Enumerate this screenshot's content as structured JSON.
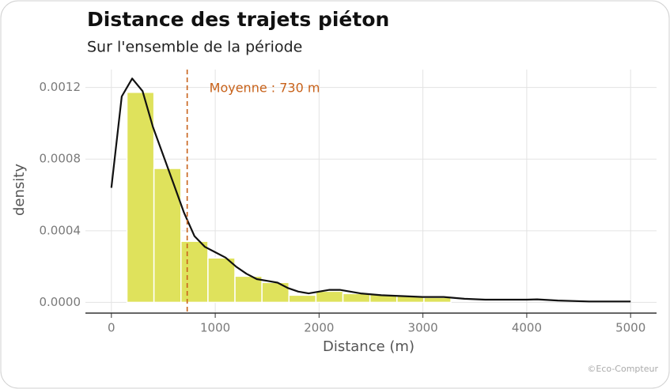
{
  "chart_data": {
    "type": "histogram",
    "title": "Distance des trajets piéton",
    "subtitle": "Sur l'ensemble de la période",
    "x_label": "Distance (m)",
    "y_label": "density",
    "credit": "©Eco-Compteur",
    "bins": [
      150,
      410,
      670,
      930,
      1190,
      1450,
      1710,
      1970,
      2230,
      2490,
      2750,
      3010,
      3270
    ],
    "values": [
      0.001173,
      0.000748,
      0.000341,
      0.000248,
      0.000146,
      0.000111,
      4e-05,
      6.2e-05,
      4.9e-05,
      4.4e-05,
      3.5e-05,
      2.7e-05
    ],
    "color": "#dfe25c",
    "density_curve": {
      "color": "#111111",
      "x": [
        0,
        100,
        200,
        300,
        400,
        500,
        600,
        700,
        800,
        900,
        1000,
        1100,
        1200,
        1300,
        1400,
        1500,
        1600,
        1700,
        1800,
        1900,
        2000,
        2100,
        2200,
        2400,
        2600,
        2800,
        3000,
        3200,
        3400,
        3600,
        3800,
        4000,
        4100,
        4300,
        4600,
        5000
      ],
      "y": [
        0.00064,
        0.00115,
        0.00125,
        0.00118,
        0.00098,
        0.00082,
        0.00066,
        0.0005,
        0.00037,
        0.00031,
        0.00028,
        0.00025,
        0.0002,
        0.00016,
        0.00013,
        0.00012,
        0.00011,
        8e-05,
        6e-05,
        5e-05,
        6e-05,
        7e-05,
        7e-05,
        5e-05,
        4e-05,
        3.5e-05,
        3e-05,
        3e-05,
        2e-05,
        1.5e-05,
        1.5e-05,
        1.5e-05,
        1.7e-05,
        1e-05,
        5e-06,
        5e-06
      ]
    },
    "mean_line": {
      "value": 730,
      "label": "Moyenne : 730 m",
      "color": "#c8621a"
    },
    "xlim": [
      -250,
      5250
    ],
    "ylim": [
      -6e-05,
      0.0013
    ],
    "xticks": [
      0,
      1000,
      2000,
      3000,
      4000,
      5000
    ],
    "yticks": [
      {
        "value": 0,
        "label": "0.0000"
      },
      {
        "value": 0.0004,
        "label": "0.0004"
      },
      {
        "value": 0.0008,
        "label": "0.0008"
      },
      {
        "value": 0.0012,
        "label": "0.0012"
      }
    ],
    "grid": true
  }
}
